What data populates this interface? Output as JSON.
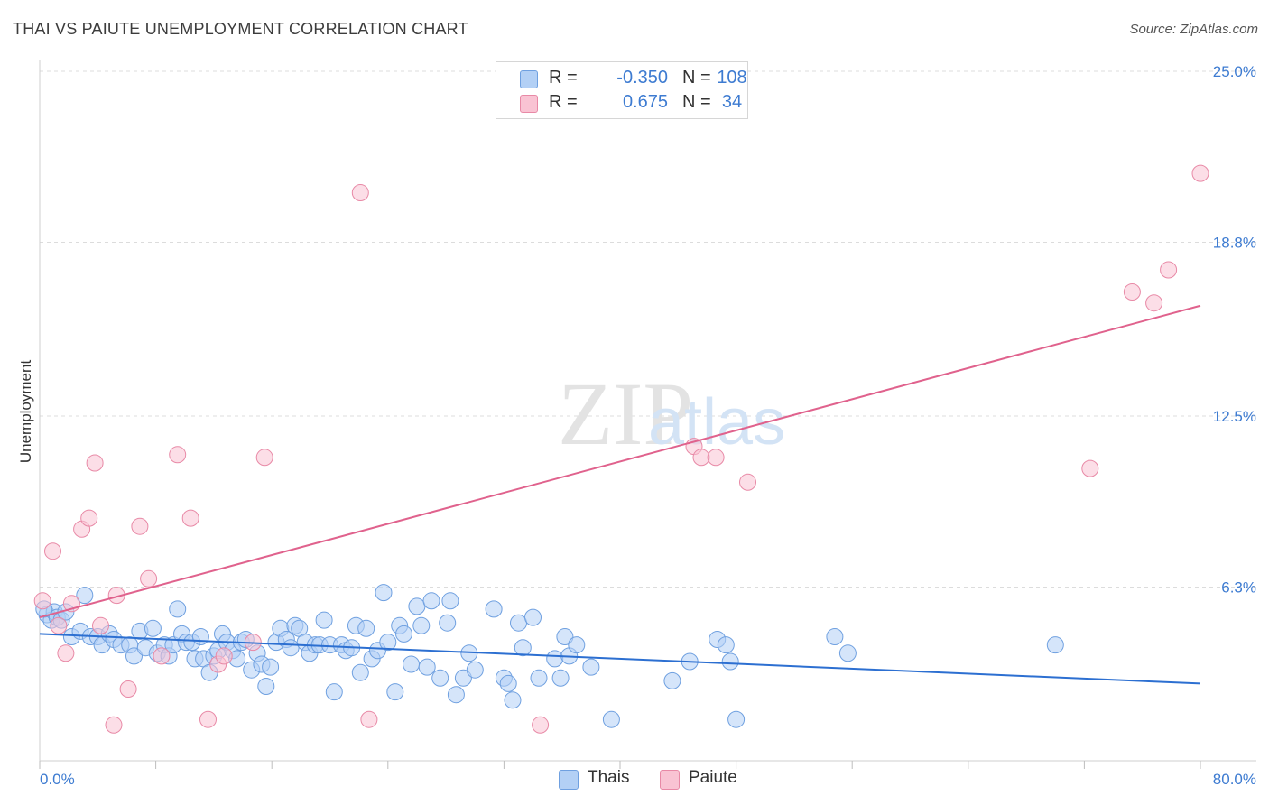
{
  "title": "THAI VS PAIUTE UNEMPLOYMENT CORRELATION CHART",
  "source": "Source: ZipAtlas.com",
  "watermark": {
    "zip": "ZIP",
    "atlas": "atlas"
  },
  "legend": {
    "rows": [
      {
        "r_label": "R =",
        "r_value": "-0.350",
        "n_label": "N =",
        "n_value": "108",
        "color": "#b3d0f5",
        "border": "#6fa0e0"
      },
      {
        "r_label": "R =",
        "r_value": "0.675",
        "n_label": "N =",
        "n_value": "34",
        "color": "#f9c3d3",
        "border": "#e889a6"
      }
    ]
  },
  "bottom_legend": [
    {
      "label": "Thais",
      "color": "#b3d0f5",
      "border": "#6fa0e0"
    },
    {
      "label": "Paiute",
      "color": "#f9c3d3",
      "border": "#e889a6"
    }
  ],
  "chart_data": {
    "type": "scatter",
    "title": "THAI VS PAIUTE UNEMPLOYMENT CORRELATION CHART",
    "xlabel": "",
    "ylabel": "Unemployment",
    "xlim": [
      0,
      80
    ],
    "ylim": [
      0,
      25
    ],
    "x_tick_labels": [
      "0.0%",
      "80.0%"
    ],
    "y_ticks": [
      6.3,
      12.5,
      18.8,
      25.0
    ],
    "y_tick_labels": [
      "6.3%",
      "12.5%",
      "18.8%",
      "25.0%"
    ],
    "grid": true,
    "series": [
      {
        "name": "Thais",
        "color": "#6fa0e0",
        "fill": "#b3d0f5",
        "line_color": "#2c6fd1",
        "trend": {
          "x": [
            0,
            80
          ],
          "y": [
            4.6,
            2.8
          ]
        },
        "points": [
          [
            0.5,
            5.3
          ],
          [
            0.8,
            5.1
          ],
          [
            1.0,
            5.4
          ],
          [
            1.2,
            5.2
          ],
          [
            1.5,
            5.1
          ],
          [
            1.8,
            5.4
          ],
          [
            2.2,
            4.5
          ],
          [
            2.8,
            4.7
          ],
          [
            3.1,
            6.0
          ],
          [
            3.5,
            4.5
          ],
          [
            4.0,
            4.5
          ],
          [
            4.3,
            4.2
          ],
          [
            4.8,
            4.6
          ],
          [
            5.1,
            4.4
          ],
          [
            5.6,
            4.2
          ],
          [
            6.2,
            4.2
          ],
          [
            6.5,
            3.8
          ],
          [
            6.9,
            4.7
          ],
          [
            7.3,
            4.1
          ],
          [
            7.8,
            4.8
          ],
          [
            8.1,
            3.9
          ],
          [
            8.6,
            4.2
          ],
          [
            8.9,
            3.8
          ],
          [
            9.2,
            4.2
          ],
          [
            9.5,
            5.5
          ],
          [
            9.8,
            4.6
          ],
          [
            10.1,
            4.3
          ],
          [
            10.5,
            4.3
          ],
          [
            10.7,
            3.7
          ],
          [
            11.1,
            4.5
          ],
          [
            11.3,
            3.7
          ],
          [
            11.7,
            3.2
          ],
          [
            12.0,
            3.8
          ],
          [
            12.3,
            4.0
          ],
          [
            12.6,
            4.6
          ],
          [
            12.9,
            4.3
          ],
          [
            13.3,
            4.0
          ],
          [
            13.6,
            3.7
          ],
          [
            13.9,
            4.3
          ],
          [
            14.2,
            4.4
          ],
          [
            14.6,
            3.3
          ],
          [
            15.0,
            3.9
          ],
          [
            15.3,
            3.5
          ],
          [
            15.6,
            2.7
          ],
          [
            15.9,
            3.4
          ],
          [
            16.3,
            4.3
          ],
          [
            16.6,
            4.8
          ],
          [
            17.0,
            4.4
          ],
          [
            17.3,
            4.1
          ],
          [
            17.6,
            4.9
          ],
          [
            17.9,
            4.8
          ],
          [
            18.3,
            4.3
          ],
          [
            18.6,
            3.9
          ],
          [
            19.0,
            4.2
          ],
          [
            19.3,
            4.2
          ],
          [
            19.6,
            5.1
          ],
          [
            20.0,
            4.2
          ],
          [
            20.3,
            2.5
          ],
          [
            20.8,
            4.2
          ],
          [
            21.1,
            4.0
          ],
          [
            21.5,
            4.1
          ],
          [
            21.8,
            4.9
          ],
          [
            22.1,
            3.2
          ],
          [
            22.5,
            4.8
          ],
          [
            22.9,
            3.7
          ],
          [
            23.3,
            4.0
          ],
          [
            23.7,
            6.1
          ],
          [
            24.0,
            4.3
          ],
          [
            24.5,
            2.5
          ],
          [
            24.8,
            4.9
          ],
          [
            25.1,
            4.6
          ],
          [
            25.6,
            3.5
          ],
          [
            26.0,
            5.6
          ],
          [
            26.3,
            4.9
          ],
          [
            26.7,
            3.4
          ],
          [
            27.0,
            5.8
          ],
          [
            27.6,
            3.0
          ],
          [
            28.1,
            5.0
          ],
          [
            28.3,
            5.8
          ],
          [
            28.7,
            2.4
          ],
          [
            29.2,
            3.0
          ],
          [
            29.6,
            3.9
          ],
          [
            30.0,
            3.3
          ],
          [
            31.3,
            5.5
          ],
          [
            32.0,
            3.0
          ],
          [
            32.3,
            2.8
          ],
          [
            32.6,
            2.2
          ],
          [
            33.0,
            5.0
          ],
          [
            33.3,
            4.1
          ],
          [
            34.0,
            5.2
          ],
          [
            34.4,
            3.0
          ],
          [
            35.5,
            3.7
          ],
          [
            35.9,
            3.0
          ],
          [
            36.2,
            4.5
          ],
          [
            36.5,
            3.8
          ],
          [
            37.0,
            4.2
          ],
          [
            38.0,
            3.4
          ],
          [
            39.4,
            1.5
          ],
          [
            43.6,
            2.9
          ],
          [
            44.8,
            3.6
          ],
          [
            46.7,
            4.4
          ],
          [
            47.3,
            4.2
          ],
          [
            47.6,
            3.6
          ],
          [
            48.0,
            1.5
          ],
          [
            54.8,
            4.5
          ],
          [
            55.7,
            3.9
          ],
          [
            70.0,
            4.2
          ],
          [
            0.3,
            5.5
          ]
        ]
      },
      {
        "name": "Paiute",
        "color": "#e889a6",
        "fill": "#f9c3d3",
        "line_color": "#e0628d",
        "trend": {
          "x": [
            0,
            80
          ],
          "y": [
            5.2,
            16.5
          ]
        },
        "points": [
          [
            0.2,
            5.8
          ],
          [
            0.9,
            7.6
          ],
          [
            1.3,
            4.9
          ],
          [
            1.8,
            3.9
          ],
          [
            2.2,
            5.7
          ],
          [
            2.9,
            8.4
          ],
          [
            3.4,
            8.8
          ],
          [
            3.8,
            10.8
          ],
          [
            4.2,
            4.9
          ],
          [
            5.1,
            1.3
          ],
          [
            5.3,
            6.0
          ],
          [
            6.1,
            2.6
          ],
          [
            6.9,
            8.5
          ],
          [
            7.5,
            6.6
          ],
          [
            8.4,
            3.8
          ],
          [
            9.5,
            11.1
          ],
          [
            10.4,
            8.8
          ],
          [
            11.6,
            1.5
          ],
          [
            12.3,
            3.5
          ],
          [
            12.7,
            3.8
          ],
          [
            14.7,
            4.3
          ],
          [
            15.5,
            11.0
          ],
          [
            22.1,
            20.6
          ],
          [
            22.7,
            1.5
          ],
          [
            34.5,
            1.3
          ],
          [
            45.1,
            11.4
          ],
          [
            45.6,
            11.0
          ],
          [
            46.6,
            11.0
          ],
          [
            48.8,
            10.1
          ],
          [
            72.4,
            10.6
          ],
          [
            75.3,
            17.0
          ],
          [
            76.8,
            16.6
          ],
          [
            77.8,
            17.8
          ],
          [
            80.0,
            21.3
          ]
        ]
      }
    ]
  }
}
